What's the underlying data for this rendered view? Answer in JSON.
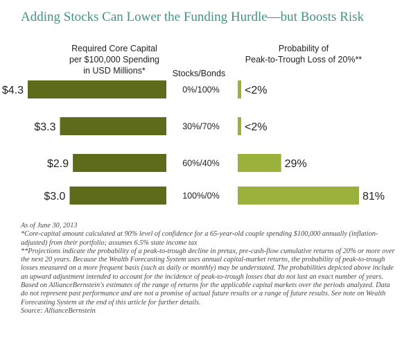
{
  "title": "Adding Stocks Can Lower the Funding Hurdle—but Boosts Risk",
  "headers": {
    "left": [
      "Required Core Capital",
      "per $100,000 Spending",
      "in USD Millions*"
    ],
    "middle": "Stocks/Bonds",
    "right": [
      "Probability of",
      "Peak-to-Trough Loss of 20%**"
    ]
  },
  "chart_data": [
    {
      "type": "bar",
      "orientation": "horizontal-leftward",
      "categories": [
        "0%/100%",
        "30%/70%",
        "60%/40%",
        "100%/0%"
      ],
      "values": [
        4.3,
        3.3,
        2.9,
        3.0
      ],
      "labels": [
        "$4.3",
        "$3.3",
        "$2.9",
        "$3.0"
      ],
      "title": "Required Core Capital per $100,000 Spending in USD Millions*",
      "color": "#5e6b1b",
      "xlim": [
        0,
        4.3
      ]
    },
    {
      "type": "bar",
      "orientation": "horizontal",
      "categories": [
        "0%/100%",
        "30%/70%",
        "60%/40%",
        "100%/0%"
      ],
      "values": [
        2,
        2,
        29,
        81
      ],
      "labels": [
        "<2%",
        "<2%",
        "29%",
        "81%"
      ],
      "title": "Probability of Peak-to-Trough Loss of 20%**",
      "color": "#9ab13b",
      "xlim": [
        0,
        81
      ]
    }
  ],
  "notes": [
    "As of June 30, 2013",
    "*Core-capital amount calculated at 90% level of confidence for a 65-year-old couple spending $100,000 annually (inflation-adjusted) from their portfolio; assumes 6.5% state income tax",
    "**Projections indicate the probability of a peak-to-trough decline in pretax, pre-cash-flow cumulative returns of 20% or more over the next 20 years. Because the Wealth Forecasting System uses annual capital-market returns, the probability of peak-to-trough losses measured on a more frequent basis (such as daily or monthly) may be understated. The probabilities depicted above include an upward adjustment intended to account for the incidence of peak-to-trough losses that do not last an exact number of years.",
    "Based on AllianceBernstein's estimates of the range of returns for the applicable capital markets over the periods analyzed. Data do not represent past performance and are not a promise of actual future results or a range of future results. See note on Wealth Forecasting System at the end of this article for further details.",
    "Source: AllianceBernstein"
  ]
}
